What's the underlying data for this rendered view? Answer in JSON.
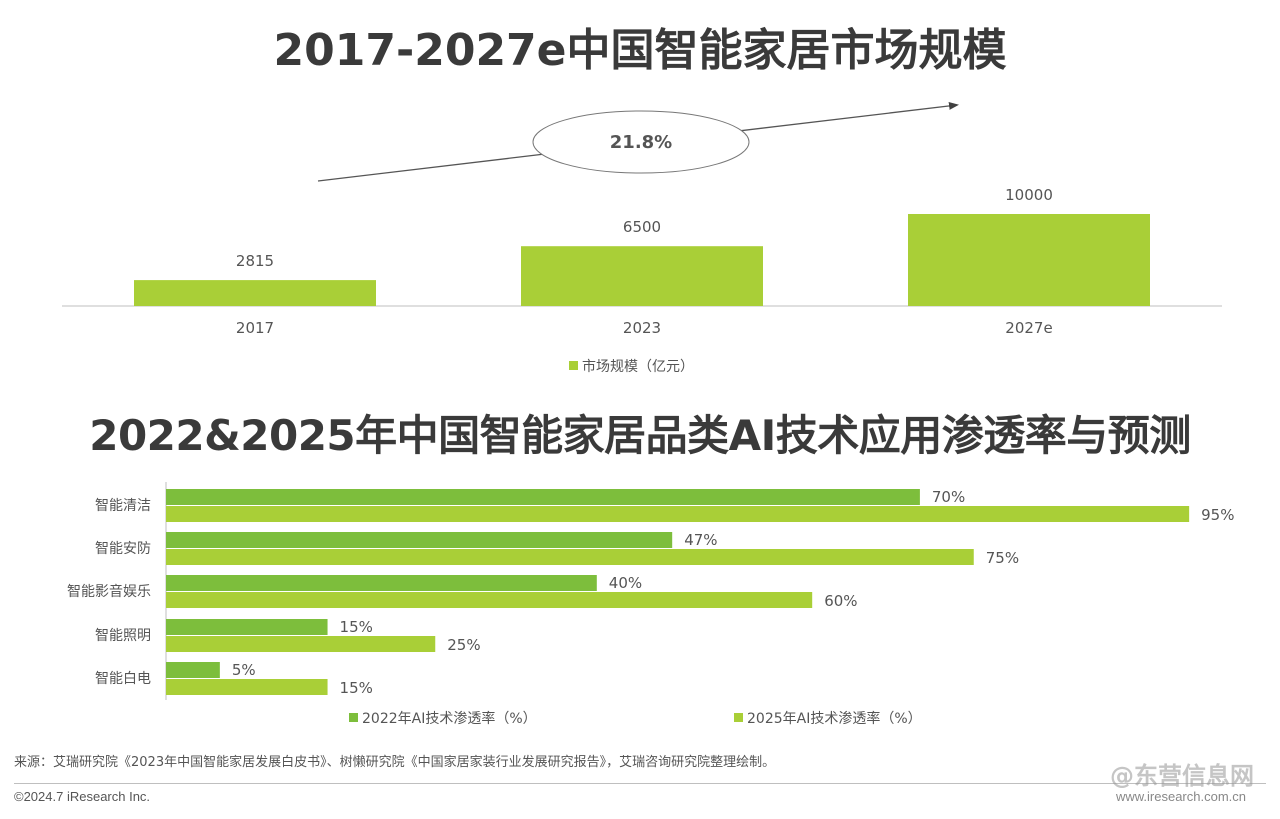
{
  "title_top": "2017-2027e中国智能家居市场规模",
  "title_bottom": "2022&2025年中国智能家居品类AI技术应用渗透率与预测",
  "colors": {
    "bar_primary": "#a9cf37",
    "bar_dark": "#7dbe3c",
    "text": "#404040"
  },
  "chart_data": [
    {
      "type": "bar",
      "title": "2017-2027e中国智能家居市场规模",
      "categories": [
        "2017",
        "2023",
        "2027e"
      ],
      "values": [
        2815,
        6500,
        10000
      ],
      "series": [
        {
          "name": "市场规模（亿元）",
          "values": [
            2815,
            6500,
            10000
          ]
        }
      ],
      "annotation": "21.8%",
      "legend_position": "bottom",
      "grid": false
    },
    {
      "type": "bar",
      "orientation": "horizontal",
      "title": "2022&2025年中国智能家居品类AI技术应用渗透率与预测",
      "categories": [
        "智能清洁",
        "智能安防",
        "智能影音娱乐",
        "智能照明",
        "智能白电"
      ],
      "series": [
        {
          "name": "2022年AI技术渗透率（%）",
          "values": [
            70,
            47,
            40,
            15,
            5
          ],
          "labels": [
            "70%",
            "47%",
            "40%",
            "15%",
            "5%"
          ]
        },
        {
          "name": "2025年AI技术渗透率（%）",
          "values": [
            95,
            75,
            60,
            25,
            15
          ],
          "labels": [
            "95%",
            "75%",
            "60%",
            "25%",
            "15%"
          ]
        }
      ],
      "xlim": [
        0,
        100
      ],
      "legend_position": "bottom",
      "grid": false
    }
  ],
  "footer": {
    "source": "来源：艾瑞研究院《2023年中国智能家居发展白皮书》、树懒研究院《中国家居家装行业发展研究报告》，艾瑞咨询研究院整理绘制。",
    "copyright": "©2024.7 iResearch Inc.",
    "url": "www.iresearch.com.cn",
    "watermark": "@东营信息网"
  }
}
